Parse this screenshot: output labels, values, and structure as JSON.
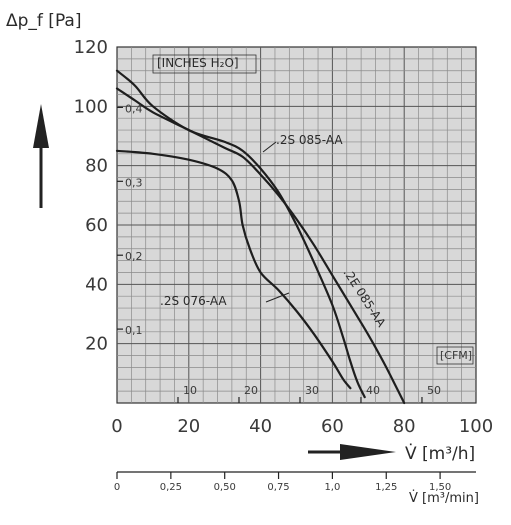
{
  "chart_data": {
    "type": "line",
    "y_axis_label": "Δp_f [Pa]",
    "x_axis_label": "V̇ [m³/h]",
    "x2_axis_label": "V̇ [m³/min]",
    "xlim": [
      0,
      100
    ],
    "ylim": [
      0,
      120
    ],
    "x_ticks": [
      "0",
      "20",
      "40",
      "60",
      "80",
      "100"
    ],
    "y_ticks": [
      "20",
      "40",
      "60",
      "80",
      "100",
      "120"
    ],
    "inches_h2o_label": "[INCHES H₂O]",
    "inches_h2o_ticks": [
      {
        "value": 0.1,
        "label": "0,1"
      },
      {
        "value": 0.2,
        "label": "0,2"
      },
      {
        "value": 0.3,
        "label": "0,3"
      },
      {
        "value": 0.4,
        "label": "0,4"
      }
    ],
    "cfm_label": "[CFM]",
    "cfm_ticks": [
      {
        "value": 10,
        "label": "10"
      },
      {
        "value": 20,
        "label": "20"
      },
      {
        "value": 30,
        "label": "30"
      },
      {
        "value": 40,
        "label": "40"
      },
      {
        "value": 50,
        "label": "50"
      }
    ],
    "m3min_ticks": [
      {
        "value": 0,
        "label": "0"
      },
      {
        "value": 0.25,
        "label": "0,25"
      },
      {
        "value": 0.5,
        "label": "0,50"
      },
      {
        "value": 0.75,
        "label": "0,75"
      },
      {
        "value": 1.0,
        "label": "1,0"
      },
      {
        "value": 1.25,
        "label": "1,25"
      },
      {
        "value": 1.5,
        "label": "1,50"
      }
    ],
    "grid": true,
    "series": [
      {
        "name": ".2S 076-AA",
        "x": [
          0,
          10,
          20,
          28,
          32,
          34,
          35,
          37,
          40,
          45,
          50,
          55,
          60,
          63,
          65
        ],
        "y": [
          85,
          84,
          82,
          79,
          75,
          68,
          60,
          52,
          44,
          38,
          31,
          23,
          14,
          8,
          5
        ]
      },
      {
        "name": ".2S 085-AA",
        "x": [
          0,
          5,
          10,
          20,
          30,
          35,
          40,
          45,
          50,
          55,
          60,
          63,
          65,
          67,
          69
        ],
        "y": [
          112,
          107,
          100,
          92,
          88,
          85,
          79,
          71,
          60,
          47,
          33,
          22,
          14,
          7,
          2
        ]
      },
      {
        "name": ".2E 085-AA",
        "x": [
          0,
          5,
          10,
          20,
          30,
          35,
          40,
          45,
          50,
          55,
          60,
          65,
          70,
          75,
          80
        ],
        "y": [
          106,
          102,
          98,
          92,
          86,
          83,
          77,
          70,
          62,
          53,
          43,
          33,
          23,
          12,
          0
        ]
      }
    ]
  }
}
